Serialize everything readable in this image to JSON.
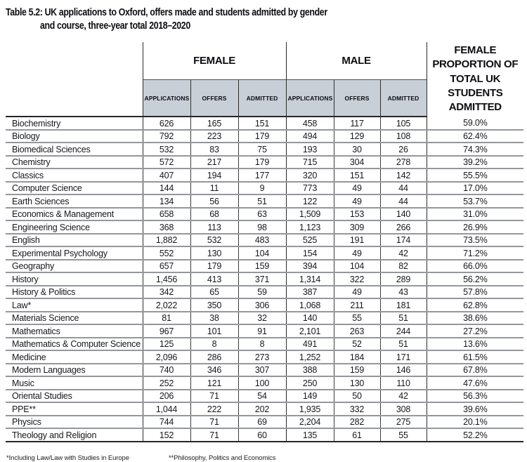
{
  "title": {
    "line1": "Table 5.2: UK applications to Oxford, offers made and students admitted by gender",
    "line2": "and course, three-year total 2018–2020"
  },
  "table": {
    "group_headers": {
      "female": "FEMALE",
      "male": "MALE"
    },
    "sub_headers": [
      "APPLICATIONS",
      "OFFERS",
      "ADMITTED",
      "APPLICATIONS",
      "OFFERS",
      "ADMITTED"
    ],
    "proportion_header": "FEMALE PROPORTION OF TOTAL UK STUDENTS ADMITTED",
    "rows": [
      {
        "course": "Biochemistry",
        "values": [
          "626",
          "165",
          "151",
          "458",
          "117",
          "105",
          "59.0%"
        ]
      },
      {
        "course": "Biology",
        "values": [
          "792",
          "223",
          "179",
          "494",
          "129",
          "108",
          "62.4%"
        ]
      },
      {
        "course": "Biomedical Sciences",
        "values": [
          "532",
          "83",
          "75",
          "193",
          "30",
          "26",
          "74.3%"
        ]
      },
      {
        "course": "Chemistry",
        "values": [
          "572",
          "217",
          "179",
          "715",
          "304",
          "278",
          "39.2%"
        ]
      },
      {
        "course": "Classics",
        "values": [
          "407",
          "194",
          "177",
          "320",
          "151",
          "142",
          "55.5%"
        ]
      },
      {
        "course": "Computer Science",
        "values": [
          "144",
          "11",
          "9",
          "773",
          "49",
          "44",
          "17.0%"
        ]
      },
      {
        "course": "Earth Sciences",
        "values": [
          "134",
          "56",
          "51",
          "122",
          "49",
          "44",
          "53.7%"
        ]
      },
      {
        "course": "Economics & Management",
        "values": [
          "658",
          "68",
          "63",
          "1,509",
          "153",
          "140",
          "31.0%"
        ]
      },
      {
        "course": "Engineering Science",
        "values": [
          "368",
          "113",
          "98",
          "1,123",
          "309",
          "266",
          "26.9%"
        ]
      },
      {
        "course": "English",
        "values": [
          "1,882",
          "532",
          "483",
          "525",
          "191",
          "174",
          "73.5%"
        ]
      },
      {
        "course": "Experimental Psychology",
        "values": [
          "552",
          "130",
          "104",
          "154",
          "49",
          "42",
          "71.2%"
        ]
      },
      {
        "course": "Geography",
        "values": [
          "657",
          "179",
          "159",
          "394",
          "104",
          "82",
          "66.0%"
        ]
      },
      {
        "course": "History",
        "values": [
          "1,456",
          "413",
          "371",
          "1,314",
          "322",
          "289",
          "56.2%"
        ]
      },
      {
        "course": "History & Politics",
        "values": [
          "342",
          "65",
          "59",
          "387",
          "49",
          "43",
          "57.8%"
        ]
      },
      {
        "course": "Law*",
        "values": [
          "2,022",
          "350",
          "306",
          "1,068",
          "211",
          "181",
          "62.8%"
        ]
      },
      {
        "course": "Materials Science",
        "values": [
          "81",
          "38",
          "32",
          "140",
          "55",
          "51",
          "38.6%"
        ]
      },
      {
        "course": "Mathematics",
        "values": [
          "967",
          "101",
          "91",
          "2,101",
          "263",
          "244",
          "27.2%"
        ]
      },
      {
        "course": "Mathematics & Computer Science",
        "values": [
          "125",
          "8",
          "8",
          "491",
          "52",
          "51",
          "13.6%"
        ]
      },
      {
        "course": "Medicine",
        "values": [
          "2,096",
          "286",
          "273",
          "1,252",
          "184",
          "171",
          "61.5%"
        ]
      },
      {
        "course": "Modern Languages",
        "values": [
          "740",
          "346",
          "307",
          "388",
          "159",
          "146",
          "67.8%"
        ]
      },
      {
        "course": "Music",
        "values": [
          "252",
          "121",
          "100",
          "250",
          "130",
          "110",
          "47.6%"
        ]
      },
      {
        "course": "Oriental Studies",
        "values": [
          "206",
          "71",
          "54",
          "149",
          "50",
          "42",
          "56.3%"
        ]
      },
      {
        "course": "PPE**",
        "values": [
          "1,044",
          "222",
          "202",
          "1,935",
          "332",
          "308",
          "39.6%"
        ]
      },
      {
        "course": "Physics",
        "values": [
          "744",
          "71",
          "69",
          "2,204",
          "282",
          "275",
          "20.1%"
        ]
      },
      {
        "course": "Theology and Religion",
        "values": [
          "152",
          "71",
          "60",
          "135",
          "61",
          "55",
          "52.2%"
        ]
      }
    ]
  },
  "footnotes": {
    "law": "*Including Law/Law with Studies in Europe",
    "ppe": "**Philosophy, Politics and Economics"
  },
  "colors": {
    "sub_header_bg": "#c8cfd7",
    "row_separator": "#94979b",
    "dark_line": "#26262a",
    "text": "#17171d"
  }
}
